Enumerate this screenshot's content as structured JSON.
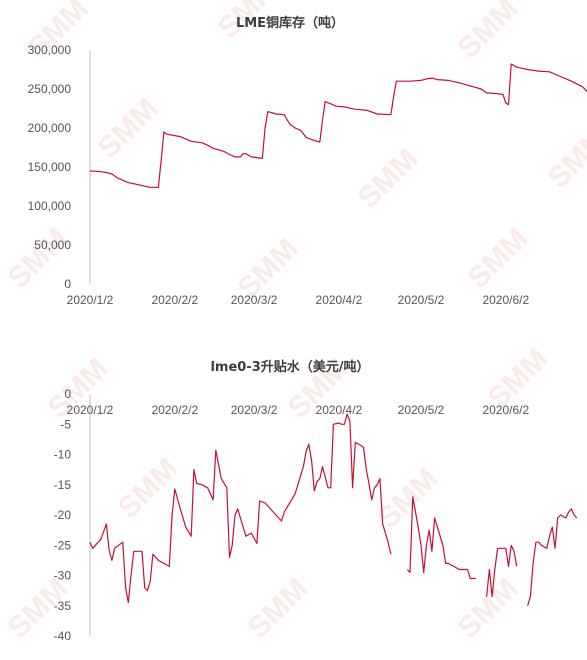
{
  "watermark": {
    "text": "SMM",
    "color": "#e23a3a"
  },
  "chart_data": [
    {
      "type": "line",
      "title": "LME铜库存（吨）",
      "color": "#c8102e",
      "x_tick_labels": [
        "2020/1/2",
        "2020/2/2",
        "2020/3/2",
        "2020/4/2",
        "2020/5/2",
        "2020/6/2"
      ],
      "x_tick_days": [
        0,
        31,
        60,
        91,
        121,
        152
      ],
      "x_range_days": [
        0,
        170
      ],
      "ylim": [
        0,
        300000
      ],
      "y_tick_values": [
        0,
        50000,
        100000,
        150000,
        200000,
        250000,
        300000
      ],
      "y_tick_labels": [
        "0",
        "50,000",
        "100,000",
        "150,000",
        "200,000",
        "250,000",
        "300,000"
      ],
      "grid": false,
      "legend": "none",
      "series": [
        {
          "points": [
            [
              "2020/1/2",
              145000
            ],
            [
              "2020/1/6",
              144000
            ],
            [
              "2020/1/8",
              143000
            ],
            [
              "2020/1/10",
              141000
            ],
            [
              "2020/1/12",
              136000
            ],
            [
              "2020/1/16",
              130000
            ],
            [
              "2020/1/20",
              127000
            ],
            [
              "2020/1/24",
              124000
            ],
            [
              "2020/1/27",
              124000
            ],
            [
              "2020/1/28",
              158000
            ],
            [
              "2020/1/29",
              195000
            ],
            [
              "2020/1/30",
              192000
            ],
            [
              "2020/2/4",
              189000
            ],
            [
              "2020/2/6",
              186000
            ],
            [
              "2020/2/8",
              183000
            ],
            [
              "2020/2/12",
              181000
            ],
            [
              "2020/2/14",
              178000
            ],
            [
              "2020/2/16",
              174000
            ],
            [
              "2020/2/20",
              170000
            ],
            [
              "2020/2/22",
              166000
            ],
            [
              "2020/2/24",
              163000
            ],
            [
              "2020/2/26",
              163000
            ],
            [
              "2020/2/27",
              167000
            ],
            [
              "2020/2/28",
              167000
            ],
            [
              "2020/3/1",
              163000
            ],
            [
              "2020/3/5",
              161000
            ],
            [
              "2020/3/6",
              200000
            ],
            [
              "2020/3/7",
              221000
            ],
            [
              "2020/3/10",
              218000
            ],
            [
              "2020/3/13",
              217000
            ],
            [
              "2020/3/15",
              205000
            ],
            [
              "2020/3/17",
              200000
            ],
            [
              "2020/3/19",
              197000
            ],
            [
              "2020/3/21",
              188000
            ],
            [
              "2020/3/24",
              184000
            ],
            [
              "2020/3/26",
              182000
            ],
            [
              "2020/3/27",
              210000
            ],
            [
              "2020/3/28",
              234000
            ],
            [
              "2020/4/1",
              228000
            ],
            [
              "2020/4/4",
              227000
            ],
            [
              "2020/4/8",
              224000
            ],
            [
              "2020/4/12",
              223000
            ],
            [
              "2020/4/16",
              218000
            ],
            [
              "2020/4/21",
              217000
            ],
            [
              "2020/4/22",
              240000
            ],
            [
              "2020/4/23",
              260000
            ],
            [
              "2020/4/28",
              260000
            ],
            [
              "2020/5/2",
              261000
            ],
            [
              "2020/5/4",
              263000
            ],
            [
              "2020/5/6",
              264000
            ],
            [
              "2020/5/8",
              262000
            ],
            [
              "2020/5/12",
              261000
            ],
            [
              "2020/5/16",
              258000
            ],
            [
              "2020/5/20",
              254000
            ],
            [
              "2020/5/24",
              250000
            ],
            [
              "2020/5/26",
              245000
            ],
            [
              "2020/5/30",
              244000
            ],
            [
              "2020/6/1",
              243000
            ],
            [
              "2020/6/2",
              232000
            ],
            [
              "2020/6/3",
              230000
            ],
            [
              "2020/6/4",
              282000
            ],
            [
              "2020/6/6",
              278000
            ],
            [
              "2020/6/10",
              275000
            ],
            [
              "2020/6/14",
              273000
            ],
            [
              "2020/6/18",
              272000
            ],
            [
              "2020/6/22",
              266000
            ],
            [
              "2020/6/26",
              260000
            ],
            [
              "2020/6/30",
              253000
            ],
            [
              "2020/7/2",
              246000
            ],
            [
              "2020/7/4",
              241000
            ],
            [
              "2020/7/6",
              237000
            ]
          ]
        }
      ]
    },
    {
      "type": "line",
      "title": "lme0-3升贴水（美元/吨）",
      "color": "#c8102e",
      "x_tick_labels": [
        "2020/1/2",
        "2020/2/2",
        "2020/3/2",
        "2020/4/2",
        "2020/5/2",
        "2020/6/2"
      ],
      "x_tick_days": [
        0,
        31,
        60,
        91,
        121,
        152
      ],
      "x_range_days": [
        0,
        170
      ],
      "x_axis_position": "top (at y = 0)",
      "ylim": [
        -40,
        0
      ],
      "y_tick_values": [
        0,
        -5,
        -10,
        -15,
        -20,
        -25,
        -30,
        -35,
        -40
      ],
      "y_tick_labels": [
        "0",
        "-5",
        "-10",
        "-15",
        "-20",
        "-25",
        "-30",
        "-35",
        "-40"
      ],
      "grid": false,
      "legend": "none",
      "series": [
        {
          "segments": [
            [
              [
                "2020/1/2",
                -24.5
              ],
              [
                "2020/1/3",
                -25.5
              ],
              [
                "2020/1/5",
                -24.5
              ],
              [
                "2020/1/6",
                -24
              ],
              [
                "2020/1/8",
                -21.5
              ],
              [
                "2020/1/9",
                -25.8
              ],
              [
                "2020/1/10",
                -27.5
              ],
              [
                "2020/1/11",
                -25.5
              ],
              [
                "2020/1/14",
                -24.5
              ],
              [
                "2020/1/15",
                -32
              ],
              [
                "2020/1/16",
                -34.5
              ],
              [
                "2020/1/17",
                -30
              ],
              [
                "2020/1/18",
                -26
              ],
              [
                "2020/1/21",
                -26
              ],
              [
                "2020/1/22",
                -32
              ],
              [
                "2020/1/23",
                -32.5
              ],
              [
                "2020/1/24",
                -31
              ],
              [
                "2020/1/25",
                -26.5
              ],
              [
                "2020/1/27",
                -27.5
              ],
              [
                "2020/1/29",
                -28
              ],
              [
                "2020/1/31",
                -28.5
              ],
              [
                "2020/2/1",
                -20
              ],
              [
                "2020/2/2",
                -15.7
              ],
              [
                "2020/2/4",
                -19
              ],
              [
                "2020/2/6",
                -22
              ],
              [
                "2020/2/8",
                -23.5
              ],
              [
                "2020/2/9",
                -12.5
              ],
              [
                "2020/2/10",
                -14.8
              ],
              [
                "2020/2/12",
                -15
              ],
              [
                "2020/2/14",
                -15.5
              ],
              [
                "2020/2/16",
                -17.5
              ],
              [
                "2020/2/17",
                -9.3
              ],
              [
                "2020/2/19",
                -14
              ],
              [
                "2020/2/21",
                -15.5
              ],
              [
                "2020/2/22",
                -27
              ],
              [
                "2020/2/23",
                -25
              ],
              [
                "2020/2/24",
                -20
              ],
              [
                "2020/2/25",
                -19
              ],
              [
                "2020/2/26",
                -20.5
              ],
              [
                "2020/2/28",
                -23.5
              ],
              [
                "2020/3/1",
                -23
              ],
              [
                "2020/3/3",
                -24.7
              ],
              [
                "2020/3/4",
                -17.7
              ],
              [
                "2020/3/6",
                -18
              ],
              [
                "2020/3/8",
                -19
              ],
              [
                "2020/3/10",
                -20
              ],
              [
                "2020/3/12",
                -21
              ],
              [
                "2020/3/13",
                -19.5
              ],
              [
                "2020/3/15",
                -18
              ],
              [
                "2020/3/17",
                -16.5
              ],
              [
                "2020/3/18",
                -15
              ],
              [
                "2020/3/19",
                -13.5
              ],
              [
                "2020/3/20",
                -12
              ],
              [
                "2020/3/21",
                -9.5
              ],
              [
                "2020/3/22",
                -8.3
              ],
              [
                "2020/3/23",
                -11
              ],
              [
                "2020/3/24",
                -16
              ],
              [
                "2020/3/25",
                -14.5
              ],
              [
                "2020/3/26",
                -14
              ],
              [
                "2020/3/27",
                -12
              ],
              [
                "2020/3/29",
                -15.5
              ],
              [
                "2020/3/30",
                -15.5
              ],
              [
                "2020/3/31",
                -5
              ],
              [
                "2020/4/2",
                -4.8
              ],
              [
                "2020/4/3",
                -5
              ],
              [
                "2020/4/4",
                -5
              ],
              [
                "2020/4/5",
                -3.3
              ],
              [
                "2020/4/6",
                -4.5
              ],
              [
                "2020/4/7",
                -15.5
              ],
              [
                "2020/4/8",
                -8
              ],
              [
                "2020/4/10",
                -8.5
              ],
              [
                "2020/4/11",
                -8.8
              ],
              [
                "2020/4/12",
                -12.5
              ],
              [
                "2020/4/13",
                -14.8
              ],
              [
                "2020/4/14",
                -17.5
              ],
              [
                "2020/4/15",
                -15.5
              ],
              [
                "2020/4/16",
                -15
              ],
              [
                "2020/4/17",
                -14
              ],
              [
                "2020/4/18",
                -21.5
              ],
              [
                "2020/4/19",
                -23
              ],
              [
                "2020/4/20",
                -24.5
              ],
              [
                "2020/4/21",
                -26.5
              ]
            ],
            [
              [
                "2020/4/27",
                -29
              ],
              [
                "2020/4/28",
                -29.5
              ],
              [
                "2020/4/29",
                -17
              ],
              [
                "2020/4/30",
                -19.5
              ],
              [
                "2020/5/1",
                -22
              ],
              [
                "2020/5/2",
                -25
              ],
              [
                "2020/5/3",
                -29.5
              ],
              [
                "2020/5/4",
                -25
              ],
              [
                "2020/5/5",
                -22.5
              ],
              [
                "2020/5/6",
                -26
              ],
              [
                "2020/5/7",
                -20.5
              ],
              [
                "2020/5/8",
                -22
              ],
              [
                "2020/5/10",
                -25
              ],
              [
                "2020/5/11",
                -28
              ],
              [
                "2020/5/12",
                -28
              ],
              [
                "2020/5/14",
                -28.5
              ],
              [
                "2020/5/16",
                -29
              ],
              [
                "2020/5/18",
                -29
              ],
              [
                "2020/5/19",
                -29
              ],
              [
                "2020/5/20",
                -30.5
              ],
              [
                "2020/5/22",
                -30.5
              ]
            ],
            [
              [
                "2020/5/26",
                -33.5
              ],
              [
                "2020/5/27",
                -29
              ],
              [
                "2020/5/28",
                -33.5
              ],
              [
                "2020/5/29",
                -29
              ],
              [
                "2020/5/30",
                -25.5
              ],
              [
                "2020/6/1",
                -25.5
              ],
              [
                "2020/6/2",
                -25.5
              ],
              [
                "2020/6/3",
                -28.5
              ],
              [
                "2020/6/4",
                -25
              ],
              [
                "2020/6/5",
                -26
              ],
              [
                "2020/6/6",
                -28.5
              ]
            ],
            [
              [
                "2020/6/10",
                -35
              ],
              [
                "2020/6/11",
                -33.5
              ],
              [
                "2020/6/12",
                -28
              ],
              [
                "2020/6/13",
                -24.5
              ],
              [
                "2020/6/14",
                -24.5
              ],
              [
                "2020/6/15",
                -25
              ],
              [
                "2020/6/17",
                -25.5
              ],
              [
                "2020/6/18",
                -23.5
              ],
              [
                "2020/6/19",
                -22
              ],
              [
                "2020/6/20",
                -25.5
              ],
              [
                "2020/6/21",
                -20.5
              ],
              [
                "2020/6/22",
                -20
              ],
              [
                "2020/6/24",
                -20.5
              ],
              [
                "2020/6/25",
                -19.5
              ],
              [
                "2020/6/26",
                -19
              ],
              [
                "2020/6/27",
                -20
              ],
              [
                "2020/6/28",
                -20.5
              ]
            ]
          ]
        }
      ]
    }
  ]
}
